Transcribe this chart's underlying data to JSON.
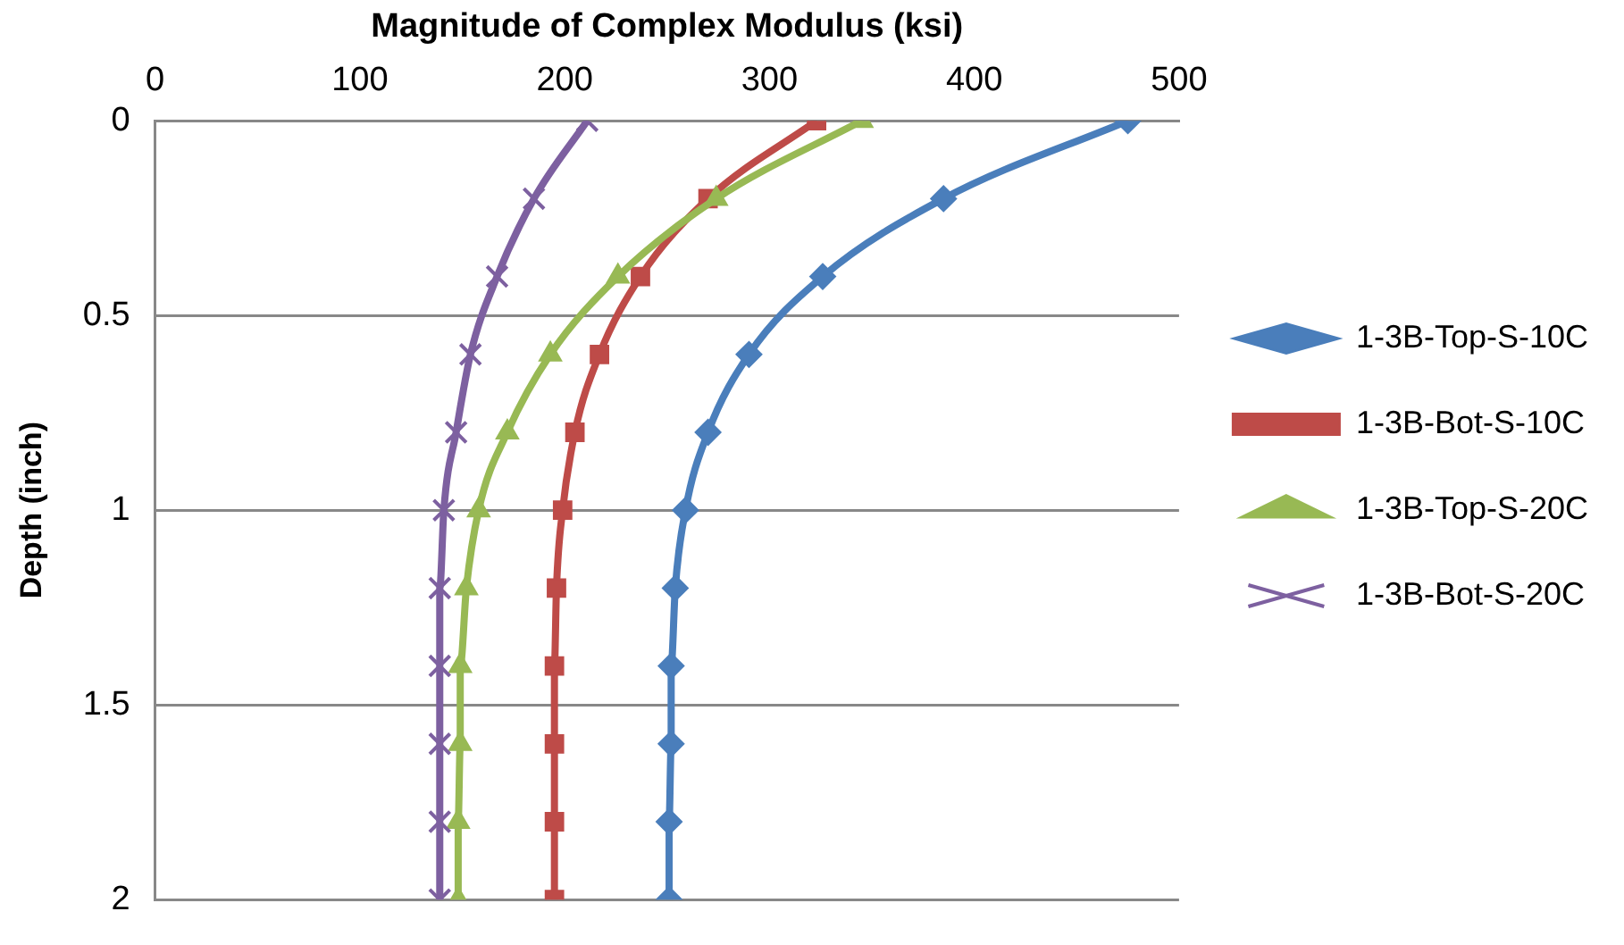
{
  "chart_data": {
    "type": "line",
    "xlabel": "Magnitude of Complex Modulus (ksi)",
    "ylabel": "Depth (inch)",
    "xlim": [
      0,
      500
    ],
    "xticks": [
      0,
      100,
      200,
      300,
      400,
      500
    ],
    "ylim": [
      2,
      0
    ],
    "yticks": [
      0,
      0.5,
      1,
      1.5,
      2
    ],
    "grid": "y",
    "legend": "right",
    "series": [
      {
        "name": "1-3B-Top-S-10C",
        "color": "#4a7ebb",
        "marker": "diamond",
        "x": [
          475,
          385,
          326,
          290,
          270,
          259,
          254,
          252,
          252,
          251,
          251
        ],
        "values": [
          0,
          0.2,
          0.4,
          0.6,
          0.8,
          1,
          1.2,
          1.4,
          1.6,
          1.8,
          2
        ]
      },
      {
        "name": "1-3B-Bot-S-10C",
        "color": "#be4b48",
        "marker": "square",
        "x": [
          323,
          270,
          237,
          217,
          205,
          199,
          196,
          195,
          195,
          195,
          195
        ],
        "values": [
          0,
          0.2,
          0.4,
          0.6,
          0.8,
          1,
          1.2,
          1.4,
          1.6,
          1.8,
          2
        ]
      },
      {
        "name": "1-3B-Top-S-20C",
        "color": "#98b954",
        "marker": "triangle",
        "x": [
          345,
          274,
          226,
          193,
          172,
          158,
          152,
          149,
          149,
          148,
          148
        ],
        "values": [
          0,
          0.2,
          0.4,
          0.6,
          0.8,
          1,
          1.2,
          1.4,
          1.6,
          1.8,
          2
        ]
      },
      {
        "name": "1-3B-Bot-S-20C",
        "color": "#7d60a0",
        "marker": "cross",
        "x": [
          211,
          185,
          167,
          154,
          147,
          141,
          139,
          139,
          139,
          139,
          139
        ],
        "values": [
          0,
          0.2,
          0.4,
          0.6,
          0.8,
          1,
          1.2,
          1.4,
          1.6,
          1.8,
          2
        ]
      }
    ]
  }
}
